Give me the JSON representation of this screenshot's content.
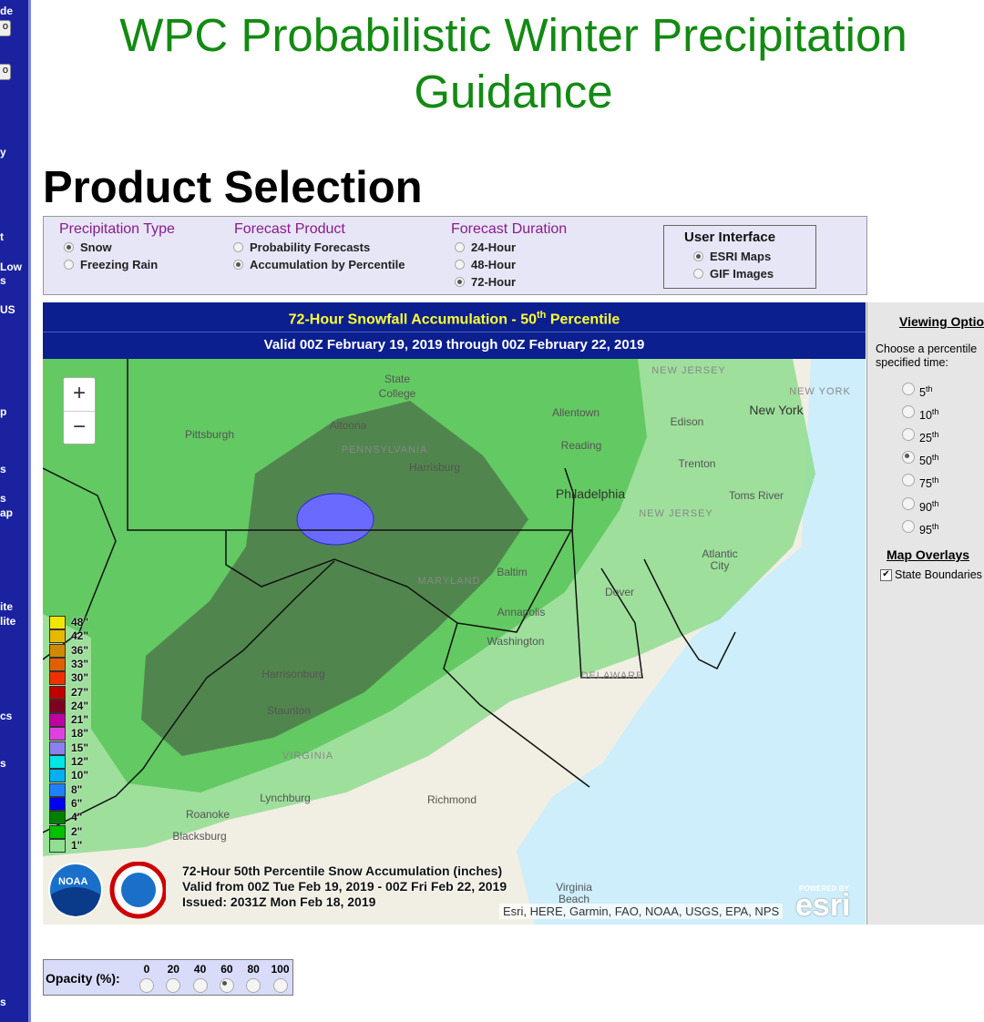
{
  "sidebar": {
    "fragments": [
      "de",
      "y",
      "t",
      "Low",
      "s",
      "US",
      "p",
      "s",
      "s",
      "ap",
      "ite",
      "lite",
      "cs",
      "s",
      "s"
    ],
    "buttons": [
      "o",
      "o"
    ]
  },
  "header": {
    "title": "WPC Probabilistic Winter Precipitation Guidance"
  },
  "section_title": "Product Selection",
  "selection": {
    "groups": [
      {
        "label": "Precipitation Type",
        "options": [
          {
            "label": "Snow",
            "selected": true
          },
          {
            "label": "Freezing Rain",
            "selected": false
          }
        ]
      },
      {
        "label": "Forecast Product",
        "options": [
          {
            "label": "Probability Forecasts",
            "selected": false
          },
          {
            "label": "Accumulation by Percentile",
            "selected": true
          }
        ]
      },
      {
        "label": "Forecast Duration",
        "options": [
          {
            "label": "24-Hour",
            "selected": false
          },
          {
            "label": "48-Hour",
            "selected": false
          },
          {
            "label": "72-Hour",
            "selected": true
          }
        ]
      },
      {
        "label": "User Interface",
        "options": [
          {
            "label": "ESRI Maps",
            "selected": true
          },
          {
            "label": "GIF Images",
            "selected": false
          }
        ]
      }
    ]
  },
  "map": {
    "title": {
      "before": "72-Hour Snowfall Accumulation - 50",
      "sup": "th",
      "after": " Percentile"
    },
    "valid": "Valid 00Z February 19, 2019 through 00Z February 22, 2019",
    "zoom_in": "+",
    "zoom_out": "−",
    "places": [
      "State",
      "College",
      "Altoona",
      "Pittsburgh",
      "PENNSYLVANIA",
      "Harrisburg",
      "Allentown",
      "Reading",
      "Philadelphia",
      "Edison",
      "NEW JERSEY",
      "NEW YORK",
      "New York",
      "Trenton",
      "Toms River",
      "NEW JERSEY",
      "Atlantic",
      "City",
      "MARYLAND",
      "Baltim",
      "Annapolis",
      "Washington",
      "Dover",
      "DELAWARE",
      "Harrisonburg",
      "Staunton",
      "VIRGINIA",
      "Lynchburg",
      "Richmond",
      "Roanoke",
      "Blacksburg",
      "Virginia",
      "Beach"
    ],
    "legend": [
      {
        "label": "48\"",
        "color": "#f2e600"
      },
      {
        "label": "42\"",
        "color": "#e6b800"
      },
      {
        "label": "36\"",
        "color": "#d08a00"
      },
      {
        "label": "33\"",
        "color": "#e06000"
      },
      {
        "label": "30\"",
        "color": "#f03000"
      },
      {
        "label": "27\"",
        "color": "#c00000"
      },
      {
        "label": "24\"",
        "color": "#800020"
      },
      {
        "label": "21\"",
        "color": "#c000a0"
      },
      {
        "label": "18\"",
        "color": "#e040e0"
      },
      {
        "label": "15\"",
        "color": "#8a80f0"
      },
      {
        "label": "12\"",
        "color": "#00e6e6"
      },
      {
        "label": "10\"",
        "color": "#00b0f0"
      },
      {
        "label": "8\"",
        "color": "#2080ff"
      },
      {
        "label": "6\"",
        "color": "#0000f0"
      },
      {
        "label": "4\"",
        "color": "#008000"
      },
      {
        "label": "2\"",
        "color": "#00c000"
      },
      {
        "label": "1\"",
        "color": "#90e090"
      }
    ],
    "caption": [
      "72-Hour 50th Percentile Snow Accumulation (inches)",
      "Valid from 00Z Tue Feb 19, 2019 - 00Z Fri Feb 22, 2019",
      "Issued: 2031Z Mon Feb 18, 2019"
    ],
    "noaa": "NOAA",
    "attribution": "Esri, HERE, Garmin, FAO, NOAA, USGS, EPA, NPS",
    "esri": {
      "powered": "POWERED BY",
      "name": "esri"
    }
  },
  "viewing_options": {
    "title": "Viewing Optio",
    "prompt": [
      "Choose a percentile",
      "specified time:"
    ],
    "percentiles": [
      {
        "num": "5",
        "sup": "th",
        "selected": false
      },
      {
        "num": "10",
        "sup": "th",
        "selected": false
      },
      {
        "num": "25",
        "sup": "th",
        "selected": false
      },
      {
        "num": "50",
        "sup": "th",
        "selected": true
      },
      {
        "num": "75",
        "sup": "th",
        "selected": false
      },
      {
        "num": "90",
        "sup": "th",
        "selected": false
      },
      {
        "num": "95",
        "sup": "th",
        "selected": false
      }
    ],
    "overlays_title": "Map Overlays",
    "overlay": {
      "label": "State Boundaries",
      "checked": true
    }
  },
  "opacity": {
    "label": "Opacity (%):",
    "options": [
      {
        "label": "0",
        "selected": false
      },
      {
        "label": "20",
        "selected": false
      },
      {
        "label": "40",
        "selected": false
      },
      {
        "label": "60",
        "selected": true
      },
      {
        "label": "80",
        "selected": false
      },
      {
        "label": "100",
        "selected": false
      }
    ]
  }
}
